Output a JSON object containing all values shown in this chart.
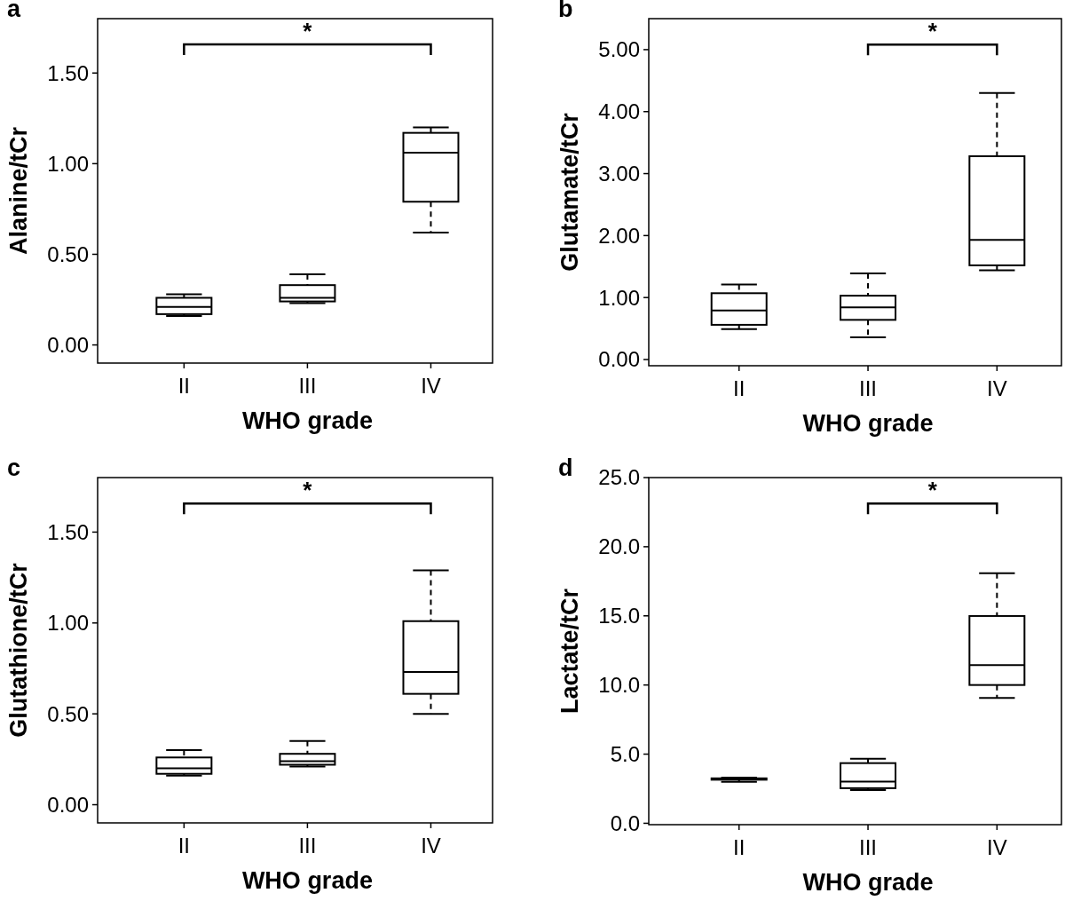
{
  "chart_data": [
    {
      "type": "box",
      "title": "a",
      "xlabel": "WHO grade",
      "ylabel": "Alanine/tCr",
      "categories": [
        "II",
        "III",
        "IV"
      ],
      "ylim": [
        -0.1,
        1.8
      ],
      "yticks": [
        {
          "value": 0,
          "label": "0.00"
        },
        {
          "value": 0.5,
          "label": "0.50"
        },
        {
          "value": 1,
          "label": "1.00"
        },
        {
          "value": 1.5,
          "label": "1.50"
        }
      ],
      "grid": false,
      "annotations": [
        "*"
      ],
      "boxes": [
        {
          "low": 0.16,
          "q1": 0.17,
          "median": 0.21,
          "q3": 0.26,
          "high": 0.28
        },
        {
          "low": 0.23,
          "q1": 0.24,
          "median": 0.26,
          "q3": 0.33,
          "high": 0.39
        },
        {
          "low": 0.62,
          "q1": 0.79,
          "median": 1.06,
          "q3": 1.17,
          "high": 1.2
        }
      ]
    },
    {
      "type": "box",
      "title": "b",
      "xlabel": "WHO grade",
      "ylabel": "Glutamate/tCr",
      "categories": [
        "II",
        "III",
        "IV"
      ],
      "ylim": [
        -0.1,
        5.5
      ],
      "yticks": [
        {
          "value": 0,
          "label": "0.00"
        },
        {
          "value": 1,
          "label": "1.00"
        },
        {
          "value": 2,
          "label": "2.00"
        },
        {
          "value": 3,
          "label": "3.00"
        },
        {
          "value": 4,
          "label": "4.00"
        },
        {
          "value": 5,
          "label": "5.00"
        }
      ],
      "grid": false,
      "annotations": [
        "*"
      ],
      "boxes": [
        {
          "low": 0.49,
          "q1": 0.56,
          "median": 0.79,
          "q3": 1.07,
          "high": 1.21
        },
        {
          "low": 0.36,
          "q1": 0.64,
          "median": 0.84,
          "q3": 1.03,
          "high": 1.39
        },
        {
          "low": 1.44,
          "q1": 1.52,
          "median": 1.93,
          "q3": 3.28,
          "high": 4.3
        }
      ]
    },
    {
      "type": "box",
      "title": "c",
      "xlabel": "WHO grade",
      "ylabel": "Glutathione/tCr",
      "categories": [
        "II",
        "III",
        "IV"
      ],
      "ylim": [
        -0.1,
        1.8
      ],
      "yticks": [
        {
          "value": 0,
          "label": "0.00"
        },
        {
          "value": 0.5,
          "label": "0.50"
        },
        {
          "value": 1,
          "label": "1.00"
        },
        {
          "value": 1.5,
          "label": "1.50"
        }
      ],
      "grid": false,
      "annotations": [
        "*"
      ],
      "boxes": [
        {
          "low": 0.16,
          "q1": 0.17,
          "median": 0.2,
          "q3": 0.26,
          "high": 0.3
        },
        {
          "low": 0.21,
          "q1": 0.22,
          "median": 0.24,
          "q3": 0.28,
          "high": 0.35
        },
        {
          "low": 0.5,
          "q1": 0.61,
          "median": 0.73,
          "q3": 1.01,
          "high": 1.29
        }
      ]
    },
    {
      "type": "box",
      "title": "d",
      "xlabel": "WHO grade",
      "ylabel": "Lactate/tCr",
      "categories": [
        "II",
        "III",
        "IV"
      ],
      "ylim": [
        -0.1,
        25
      ],
      "yticks": [
        {
          "value": 0,
          "label": "0.0"
        },
        {
          "value": 5,
          "label": "5.0"
        },
        {
          "value": 10,
          "label": "10.0"
        },
        {
          "value": 15,
          "label": "15.0"
        },
        {
          "value": 20,
          "label": "20.0"
        },
        {
          "value": 25,
          "label": "25.0"
        }
      ],
      "grid": false,
      "annotations": [
        "*"
      ],
      "boxes": [
        {
          "low": 3.0,
          "q1": 3.15,
          "median": 3.2,
          "q3": 3.25,
          "high": 3.3
        },
        {
          "low": 2.4,
          "q1": 2.54,
          "median": 3.01,
          "q3": 4.35,
          "high": 4.67
        },
        {
          "low": 9.06,
          "q1": 10.0,
          "median": 11.44,
          "q3": 14.99,
          "high": 18.08
        }
      ]
    }
  ]
}
